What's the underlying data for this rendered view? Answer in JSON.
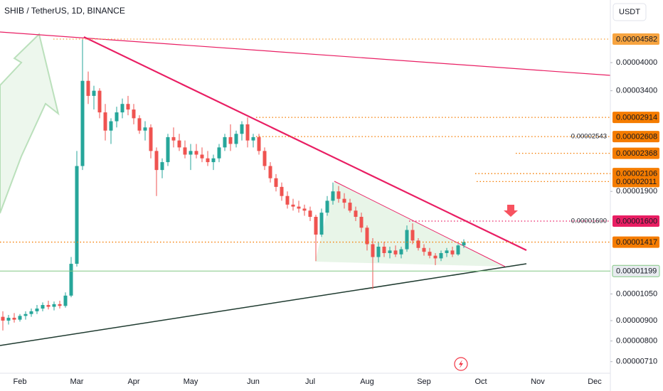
{
  "chart_data": {
    "type": "candlestick",
    "title": "SHIB / TetherUS, 1D, BINANCE",
    "currency": "USDT",
    "log": true,
    "up_color": "#26a69a",
    "down_color": "#ef5350",
    "categories": [
      null,
      null,
      null,
      "Feb",
      null,
      null,
      null,
      null,
      null,
      null,
      null,
      null,
      null,
      "Mar",
      null,
      null,
      null,
      null,
      null,
      null,
      null,
      null,
      null,
      "Apr",
      null,
      null,
      null,
      null,
      null,
      null,
      null,
      null,
      null,
      "May",
      null,
      null,
      null,
      null,
      null,
      null,
      null,
      null,
      null,
      null,
      "Jun",
      null,
      null,
      null,
      null,
      null,
      null,
      null,
      null,
      null,
      "Jul",
      null,
      null,
      null,
      null,
      null,
      null,
      null,
      null,
      null,
      "Aug",
      null,
      null,
      null,
      null,
      null,
      null,
      null,
      null,
      null,
      "Sep",
      null,
      null,
      null,
      null,
      null,
      null,
      null,
      null,
      null,
      "Oct",
      null,
      null,
      null,
      null,
      null,
      null,
      null,
      null,
      null,
      "Nov",
      null,
      null,
      null,
      null,
      null,
      null,
      null,
      null,
      null,
      "Dec",
      null,
      null
    ],
    "open": [
      9.2e-06,
      9e-06,
      9.15e-06,
      9.05e-06,
      9.25e-06,
      9.35e-06,
      9.5e-06,
      9.65e-06,
      9.85e-06,
      9.75e-06,
      9.9e-06,
      9.8e-06,
      1.04e-05,
      1.25e-05,
      2.2e-05,
      3.6e-05,
      3.3e-05,
      3.4e-05,
      3e-05,
      2.7e-05,
      2.85e-05,
      3e-05,
      3.15e-05,
      3.05e-05,
      2.9e-05,
      2.7e-05,
      2.75e-05,
      2.4e-05,
      2.15e-05,
      2.25e-05,
      2.6e-05,
      2.55e-05,
      2.45e-05,
      2.35e-05,
      2.4e-05,
      2.35e-05,
      2.3e-05,
      2.25e-05,
      2.3e-05,
      2.45e-05,
      2.6e-05,
      2.5e-05,
      2.65e-05,
      2.8e-05,
      2.55e-05,
      2.6e-05,
      2.4e-05,
      2.2e-05,
      2.05e-05,
      1.95e-05,
      1.85e-05,
      1.76e-05,
      1.74e-05,
      1.72e-05,
      1.7e-05,
      1.64e-05,
      1.48e-05,
      1.68e-05,
      1.8e-05,
      1.9e-05,
      1.82e-05,
      1.78e-05,
      1.7e-05,
      1.64e-05,
      1.54e-05,
      1.4e-05,
      1.3e-05,
      1.38e-05,
      1.33e-05,
      1.35e-05,
      1.32e-05,
      1.36e-05,
      1.52e-05,
      1.43e-05,
      1.37e-05,
      1.34e-05,
      1.31e-05,
      1.29e-05,
      1.33e-05,
      1.35e-05,
      1.32e-05,
      1.39e-05,
      null,
      null,
      null,
      null,
      null,
      null,
      null,
      null,
      null,
      null,
      null,
      null,
      null,
      null,
      null,
      null,
      null,
      null,
      null,
      null,
      null,
      null,
      null,
      null,
      null
    ],
    "high": [
      9.5e-06,
      9.3e-06,
      9.4e-06,
      9.35e-06,
      9.5e-06,
      9.65e-06,
      9.85e-06,
      1e-05,
      1.01e-05,
      1.005e-05,
      1.01e-05,
      1.06e-05,
      1.3e-05,
      2.4e-05,
      4.582e-05,
      3.8e-05,
      3.5e-05,
      3.45e-05,
      3.15e-05,
      2.9e-05,
      3.1e-05,
      3.25e-05,
      3.3e-05,
      3.15e-05,
      2.95e-05,
      2.85e-05,
      2.8e-05,
      2.45e-05,
      2.3e-05,
      2.65e-05,
      2.75e-05,
      2.65e-05,
      2.55e-05,
      2.5e-05,
      2.5e-05,
      2.45e-05,
      2.4e-05,
      2.35e-05,
      2.5e-05,
      2.65e-05,
      2.8e-05,
      2.7e-05,
      2.85e-05,
      2.914e-05,
      2.65e-05,
      2.65e-05,
      2.45e-05,
      2.25e-05,
      2.1e-05,
      2e-05,
      1.9e-05,
      1.82e-05,
      1.8e-05,
      1.76e-05,
      1.74e-05,
      1.66e-05,
      1.72e-05,
      1.85e-05,
      2e-05,
      1.96e-05,
      1.88e-05,
      1.82e-05,
      1.74e-05,
      1.68e-05,
      1.56e-05,
      1.45e-05,
      1.42e-05,
      1.42e-05,
      1.38e-05,
      1.39e-05,
      1.38e-05,
      1.56e-05,
      1.58e-05,
      1.45e-05,
      1.4e-05,
      1.37e-05,
      1.33e-05,
      1.35e-05,
      1.37e-05,
      1.38e-05,
      1.4e-05,
      1.44e-05,
      null,
      null,
      null,
      null,
      null,
      null,
      null,
      null,
      null,
      null,
      null,
      null,
      null,
      null,
      null,
      null,
      null,
      null,
      null,
      null,
      null,
      null,
      null,
      null,
      null
    ],
    "low": [
      8.5e-06,
      8.8e-06,
      8.9e-06,
      8.95e-06,
      9.05e-06,
      9.2e-06,
      9.35e-06,
      9.5e-06,
      9.6e-06,
      9.55e-06,
      9.65e-06,
      9.7e-06,
      1.03e-05,
      1.23e-05,
      2.15e-05,
      3.15e-05,
      3.05e-05,
      2.9e-05,
      2.55e-05,
      2.5e-05,
      2.75e-05,
      2.9e-05,
      2.95e-05,
      2.8e-05,
      2.65e-05,
      2.55e-05,
      2.3e-05,
      1.85e-05,
      2.05e-05,
      2.2e-05,
      2.45e-05,
      2.4e-05,
      2.3e-05,
      2.15e-05,
      2.3e-05,
      2.25e-05,
      2.2e-05,
      2.15e-05,
      2.25e-05,
      2.4e-05,
      2.4e-05,
      2.45e-05,
      2.55e-05,
      2.45e-05,
      2.45e-05,
      2.35e-05,
      2.15e-05,
      2e-05,
      1.9e-05,
      1.8e-05,
      1.72e-05,
      1.7e-05,
      1.68e-05,
      1.65e-05,
      1.6e-05,
      1.27e-05,
      1.46e-05,
      1.65e-05,
      1.76e-05,
      1.78e-05,
      1.72e-05,
      1.68e-05,
      1.6e-05,
      1.5e-05,
      1.35e-05,
      1.08e-05,
      1.26e-05,
      1.3e-05,
      1.29e-05,
      1.3e-05,
      1.29e-05,
      1.34e-05,
      1.4e-05,
      1.35e-05,
      1.31e-05,
      1.29e-05,
      1.24e-05,
      1.27e-05,
      1.3e-05,
      1.3e-05,
      1.31e-05,
      1.37e-05,
      null,
      null,
      null,
      null,
      null,
      null,
      null,
      null,
      null,
      null,
      null,
      null,
      null,
      null,
      null,
      null,
      null,
      null,
      null,
      null,
      null,
      null,
      null,
      null,
      null
    ],
    "close": [
      9e-06,
      9.15e-06,
      9.05e-06,
      9.25e-06,
      9.35e-06,
      9.5e-06,
      9.65e-06,
      9.85e-06,
      9.75e-06,
      9.9e-06,
      9.8e-06,
      1.04e-05,
      1.25e-05,
      2.2e-05,
      3.6e-05,
      3.3e-05,
      3.4e-05,
      3e-05,
      2.7e-05,
      2.85e-05,
      3e-05,
      3.15e-05,
      3.05e-05,
      2.9e-05,
      2.7e-05,
      2.75e-05,
      2.4e-05,
      2.15e-05,
      2.25e-05,
      2.6e-05,
      2.55e-05,
      2.45e-05,
      2.35e-05,
      2.4e-05,
      2.35e-05,
      2.3e-05,
      2.25e-05,
      2.3e-05,
      2.45e-05,
      2.6e-05,
      2.5e-05,
      2.65e-05,
      2.8e-05,
      2.55e-05,
      2.6e-05,
      2.4e-05,
      2.2e-05,
      2.05e-05,
      1.95e-05,
      1.85e-05,
      1.76e-05,
      1.74e-05,
      1.72e-05,
      1.7e-05,
      1.64e-05,
      1.48e-05,
      1.68e-05,
      1.8e-05,
      1.9e-05,
      1.82e-05,
      1.78e-05,
      1.7e-05,
      1.64e-05,
      1.54e-05,
      1.4e-05,
      1.3e-05,
      1.38e-05,
      1.33e-05,
      1.35e-05,
      1.32e-05,
      1.36e-05,
      1.52e-05,
      1.43e-05,
      1.37e-05,
      1.34e-05,
      1.31e-05,
      1.29e-05,
      1.33e-05,
      1.35e-05,
      1.32e-05,
      1.39e-05,
      1.417e-05,
      null,
      null,
      null,
      null,
      null,
      null,
      null,
      null,
      null,
      null,
      null,
      null,
      null,
      null,
      null,
      null,
      null,
      null,
      null,
      null,
      null,
      null,
      null,
      null,
      null
    ],
    "ylim": [
      6.64e-06,
      5.745e-05
    ],
    "yticks": [
      {
        "value": 4e-05,
        "label": "0.00004000"
      },
      {
        "value": 3.4e-05,
        "label": "0.00003400"
      },
      {
        "value": 1.9e-05,
        "label": "0.00001900"
      },
      {
        "value": 1.05e-05,
        "label": "0.00001050"
      },
      {
        "value": 9e-06,
        "label": "0.00000900"
      },
      {
        "value": 8e-06,
        "label": "0.00000800"
      },
      {
        "value": 7.1e-06,
        "label": "0.00000710"
      }
    ],
    "levels": [
      {
        "value": 4.582e-05,
        "label": "0.00004582",
        "color": "#f7a440",
        "text_color": "#131722",
        "line_style": "dotted"
      },
      {
        "value": 2.914e-05,
        "label": "0.00002914",
        "color": "#f57c00",
        "text_color": "#ffffff",
        "line_style": "dotted"
      },
      {
        "value": 2.608e-05,
        "label": "0.00002608",
        "color": "#f57c00",
        "text_color": "#131722",
        "line_style": "dotted",
        "note": "0.00002543"
      },
      {
        "value": 2.368e-05,
        "label": "0.00002368",
        "color": "#f57c00",
        "text_color": "#131722",
        "line_style": "dotted"
      },
      {
        "value": 2.106e-05,
        "label": "0.00002106",
        "color": "#f57c00",
        "text_color": "#131722",
        "line_style": "dotted"
      },
      {
        "value": 2.011e-05,
        "label": "0.00002011",
        "color": "#f57c00",
        "text_color": "#131722",
        "line_style": "dotted"
      },
      {
        "value": 1.6e-05,
        "label": "0.00001600",
        "color": "#e91e63",
        "text_color": "#ffffff",
        "line_style": "dotted"
      },
      {
        "value": 1.417e-05,
        "label": "0.00001417",
        "color": "#f57c00",
        "text_color": "#ffffff",
        "line_style": "dotted"
      },
      {
        "value": 1.199e-05,
        "label": "0.00001199",
        "color": "#81c784",
        "text_color": "#131722",
        "line_style": "solid"
      }
    ]
  }
}
